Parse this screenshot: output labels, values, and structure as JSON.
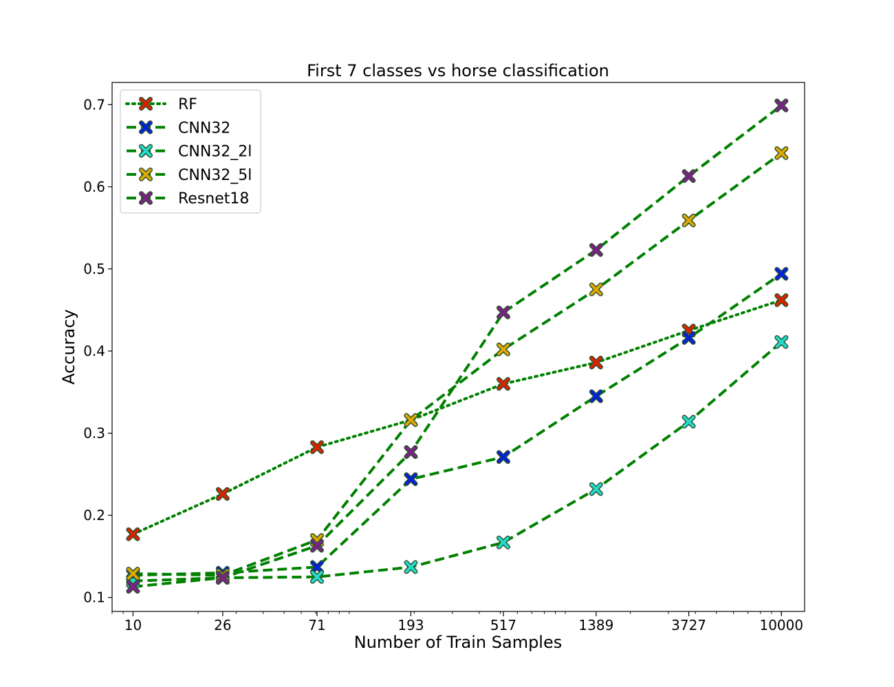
{
  "chart_data": {
    "type": "line",
    "title": "First 7 classes vs horse classification",
    "xlabel": "Number of Train Samples",
    "ylabel": "Accuracy",
    "xscale": "log",
    "x": [
      10,
      26,
      71,
      193,
      517,
      1389,
      3727,
      10000
    ],
    "x_tick_labels": [
      "10",
      "26",
      "71",
      "193",
      "517",
      "1389",
      "3727",
      "10000"
    ],
    "xlim": [
      8,
      12800
    ],
    "ylim": [
      0.083,
      0.727
    ],
    "y_ticks": [
      0.1,
      0.2,
      0.3,
      0.4,
      0.5,
      0.6,
      0.7
    ],
    "y_tick_labels": [
      "0.1",
      "0.2",
      "0.3",
      "0.4",
      "0.5",
      "0.6",
      "0.7"
    ],
    "legend_position": "top-left",
    "line_color": "#008000",
    "series": [
      {
        "name": "RF",
        "style": "dotted",
        "marker_color": "#dd2200",
        "values": [
          0.177,
          0.226,
          0.283,
          0.316,
          0.36,
          0.386,
          0.425,
          0.462
        ]
      },
      {
        "name": "CNN32",
        "style": "dashed",
        "marker_color": "#0022dd",
        "values": [
          0.127,
          0.13,
          0.137,
          0.244,
          0.271,
          0.345,
          0.416,
          0.494
        ]
      },
      {
        "name": "CNN32_2l",
        "style": "dashed",
        "marker_color": "#22ddcc",
        "values": [
          0.12,
          0.124,
          0.125,
          0.137,
          0.167,
          0.232,
          0.314,
          0.411
        ]
      },
      {
        "name": "CNN32_5l",
        "style": "dashed",
        "marker_color": "#ddaa00",
        "values": [
          0.129,
          0.127,
          0.17,
          0.316,
          0.402,
          0.475,
          0.559,
          0.641
        ]
      },
      {
        "name": "Resnet18",
        "style": "dashed",
        "marker_color": "#7a2288",
        "values": [
          0.113,
          0.124,
          0.163,
          0.277,
          0.447,
          0.523,
          0.613,
          0.699
        ]
      }
    ]
  }
}
